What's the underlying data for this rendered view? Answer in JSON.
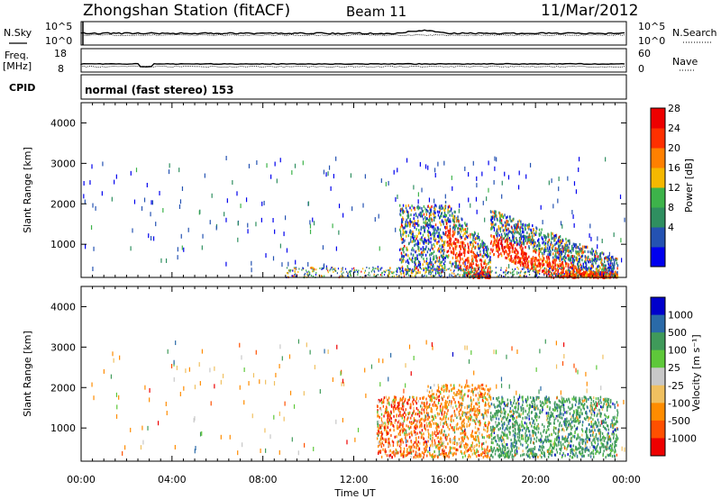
{
  "header": {
    "station_title": "Zhongshan Station (fitACF)",
    "beam": "Beam 11",
    "date": "11/Mar/2012"
  },
  "strips": {
    "nsky_label": "N.Sky",
    "nsearch_label": "N.Search",
    "nsky_ticks": [
      "10^5",
      "10^0"
    ],
    "nsearch_ticks": [
      "10^5",
      "10^0"
    ],
    "freq_label_line1": "Freq.",
    "freq_label_line2": "[MHz]",
    "freq_ticks": [
      "18",
      "8"
    ],
    "nave_label": "Nave",
    "nave_ticks": [
      "60",
      "0"
    ],
    "cpid_label": "CPID",
    "cpid_text": "normal (fast stereo) 153"
  },
  "chart_data": [
    {
      "type": "heatmap",
      "name": "power",
      "ylabel": "Slant Range [km]",
      "ylim": [
        180,
        4500
      ],
      "yticks": [
        "4000",
        "3000",
        "2000",
        "1000"
      ],
      "ytick_values": [
        4000,
        3000,
        2000,
        1000
      ],
      "xlim": [
        0,
        24
      ],
      "colorbar_label": "Power [dB]",
      "colorbar_ticks": [
        "28",
        "24",
        "20",
        "16",
        "12",
        "8",
        "4"
      ],
      "colorbar_colors": [
        "#0000ee",
        "#2452b2",
        "#2f8f60",
        "#3db34a",
        "#f5b800",
        "#ff8000",
        "#ff3000",
        "#ee0000"
      ],
      "colorbar_range": [
        0,
        32
      ]
    },
    {
      "type": "heatmap",
      "name": "velocity",
      "ylabel": "Slant Range [km]",
      "ylim": [
        180,
        4500
      ],
      "yticks": [
        "4000",
        "3000",
        "2000",
        "1000"
      ],
      "ytick_values": [
        4000,
        3000,
        2000,
        1000
      ],
      "xlim": [
        0,
        24
      ],
      "xticks": [
        "00:00",
        "04:00",
        "08:00",
        "12:00",
        "16:00",
        "20:00",
        "00:00"
      ],
      "xtick_values": [
        0,
        4,
        8,
        12,
        16,
        20,
        24
      ],
      "xlabel": "Time UT",
      "colorbar_label": "Velocity [m s⁻¹]",
      "colorbar_ticks": [
        "1000",
        "500",
        "100",
        "25",
        "-25",
        "-100",
        "-500",
        "-1000"
      ],
      "colorbar_colors": [
        "#0000cc",
        "#2a6aa8",
        "#3f9a5a",
        "#5ec83a",
        "#c8c8c8",
        "#f0c060",
        "#ff8c00",
        "#ff5000",
        "#ee0000"
      ]
    }
  ]
}
